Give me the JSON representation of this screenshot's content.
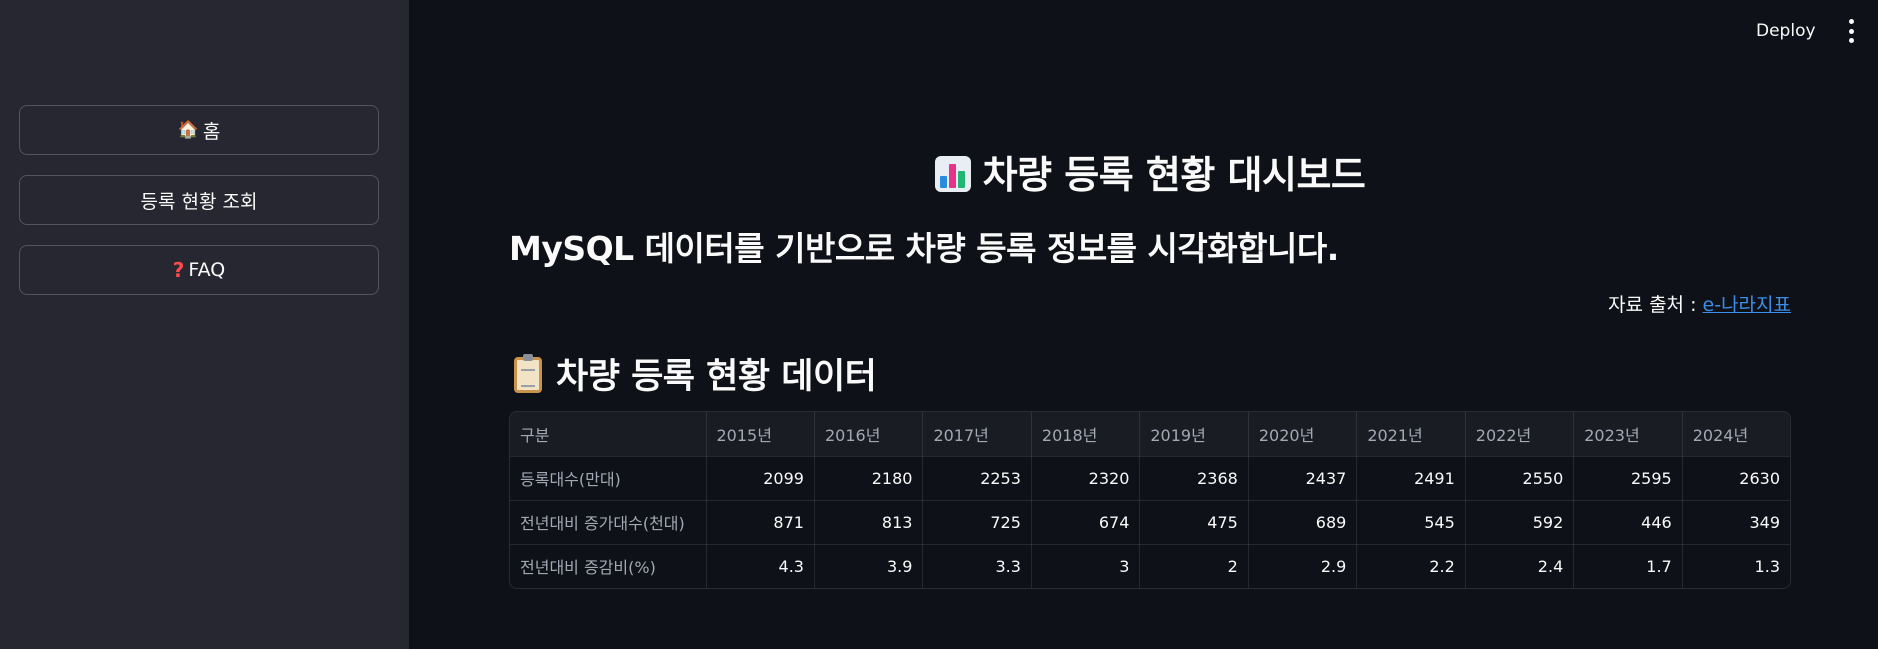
{
  "header": {
    "deploy_label": "Deploy"
  },
  "sidebar": {
    "items": [
      {
        "icon": "house-icon",
        "label": "홈"
      },
      {
        "label": "등록 현황 조회"
      },
      {
        "icon": "question-mark-icon",
        "label": "FAQ"
      }
    ]
  },
  "main": {
    "title": "차량 등록 현황 대시보드",
    "subtitle": "MySQL 데이터를 기반으로 차량 등록 정보를 시각화합니다.",
    "source_prefix": "자료 출처 : ",
    "source_link": "e-나라지표",
    "section_title": "차량 등록 현황 데이터"
  },
  "table": {
    "columns": [
      "구분",
      "2015년",
      "2016년",
      "2017년",
      "2018년",
      "2019년",
      "2020년",
      "2021년",
      "2022년",
      "2023년",
      "2024년"
    ],
    "rows": [
      {
        "label": "등록대수(만대)",
        "values": [
          "2099",
          "2180",
          "2253",
          "2320",
          "2368",
          "2437",
          "2491",
          "2550",
          "2595",
          "2630"
        ]
      },
      {
        "label": "전년대비 증가대수(천대)",
        "values": [
          "871",
          "813",
          "725",
          "674",
          "475",
          "689",
          "545",
          "592",
          "446",
          "349"
        ]
      },
      {
        "label": "전년대비 증감비(%)",
        "values": [
          "4.3",
          "3.9",
          "3.3",
          "3",
          "2",
          "2.9",
          "2.2",
          "2.4",
          "1.7",
          "1.3"
        ]
      }
    ]
  },
  "colors": {
    "background": "#0e1117",
    "sidebar": "#262730",
    "link": "#3b8eea"
  }
}
